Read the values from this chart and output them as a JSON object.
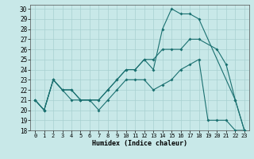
{
  "xlabel": "Humidex (Indice chaleur)",
  "bg_color": "#c8e8e8",
  "grid_color": "#a8d0d0",
  "line_color": "#1a7070",
  "xlim": [
    -0.5,
    23.5
  ],
  "ylim": [
    18,
    30.4
  ],
  "xticks": [
    0,
    1,
    2,
    3,
    4,
    5,
    6,
    7,
    8,
    9,
    10,
    11,
    12,
    13,
    14,
    15,
    16,
    17,
    18,
    19,
    20,
    21,
    22,
    23
  ],
  "yticks": [
    18,
    19,
    20,
    21,
    22,
    23,
    24,
    25,
    26,
    27,
    28,
    29,
    30
  ],
  "series": [
    {
      "x": [
        0,
        1,
        2,
        3,
        4,
        5,
        6,
        7,
        8,
        9,
        10,
        11,
        12,
        13,
        14,
        15,
        16,
        17,
        18,
        22,
        23
      ],
      "y": [
        21,
        20,
        23,
        22,
        22,
        21,
        21,
        21,
        22,
        23,
        24,
        24,
        25,
        24,
        28,
        30,
        29.5,
        29.5,
        29,
        21,
        18
      ]
    },
    {
      "x": [
        0,
        1,
        2,
        3,
        4,
        5,
        6,
        7,
        8,
        9,
        10,
        11,
        12,
        13,
        14,
        15,
        16,
        17,
        18,
        20,
        21,
        22,
        23
      ],
      "y": [
        21,
        20,
        23,
        22,
        22,
        21,
        21,
        21,
        22,
        23,
        24,
        24,
        25,
        25,
        26,
        26,
        26,
        27,
        27,
        26,
        24.5,
        21,
        18
      ]
    },
    {
      "x": [
        0,
        1,
        2,
        3,
        4,
        5,
        6,
        7,
        8,
        9,
        10,
        11,
        12,
        13,
        14,
        15,
        16,
        17,
        18,
        19,
        20,
        21,
        22,
        23
      ],
      "y": [
        21,
        20,
        23,
        22,
        21,
        21,
        21,
        20,
        21,
        22,
        23,
        23,
        23,
        22,
        22.5,
        23,
        24,
        24.5,
        25,
        19,
        19,
        19,
        18,
        18
      ]
    }
  ]
}
